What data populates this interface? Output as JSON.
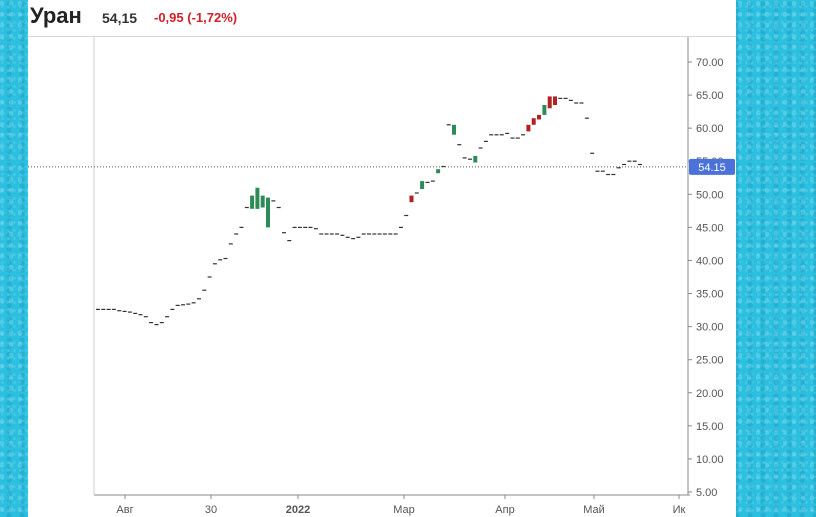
{
  "header": {
    "ticker": "Уран",
    "price": "54,15",
    "change": "-0,95 (-1,72%)"
  },
  "colors": {
    "up": "#2e8b57",
    "down": "#b22222",
    "flat": "#333333",
    "last_price_badge": "#4a72d8"
  },
  "chart_data": {
    "type": "candlestick",
    "x_ticks": [
      "Авг",
      "30",
      "2022",
      "Мар",
      "Апр",
      "Май",
      "Ик"
    ],
    "y_ticks": [
      "70.00",
      "65.00",
      "60.00",
      "55.00",
      "50.00",
      "45.00",
      "40.00",
      "35.00",
      "30.00",
      "25.00",
      "20.00",
      "15.00",
      "10.00",
      "5.00"
    ],
    "ylim": [
      5,
      70
    ],
    "last_price": 54.15,
    "last_price_label": "54.15",
    "candles": [
      {
        "o": 32.6,
        "c": 32.6
      },
      {
        "o": 32.6,
        "c": 32.6
      },
      {
        "o": 32.6,
        "c": 32.6
      },
      {
        "o": 32.6,
        "c": 32.6
      },
      {
        "o": 32.4,
        "c": 32.4
      },
      {
        "o": 32.3,
        "c": 32.3
      },
      {
        "o": 32.2,
        "c": 32.2
      },
      {
        "o": 32.0,
        "c": 32.0
      },
      {
        "o": 31.8,
        "c": 31.8
      },
      {
        "o": 31.5,
        "c": 31.5
      },
      {
        "o": 30.6,
        "c": 30.6
      },
      {
        "o": 30.3,
        "c": 30.3
      },
      {
        "o": 30.6,
        "c": 30.6
      },
      {
        "o": 31.5,
        "c": 31.5
      },
      {
        "o": 32.6,
        "c": 32.6
      },
      {
        "o": 33.2,
        "c": 33.2
      },
      {
        "o": 33.3,
        "c": 33.3
      },
      {
        "o": 33.4,
        "c": 33.4
      },
      {
        "o": 33.6,
        "c": 33.6
      },
      {
        "o": 34.2,
        "c": 34.2
      },
      {
        "o": 35.5,
        "c": 35.5
      },
      {
        "o": 37.5,
        "c": 37.5
      },
      {
        "o": 39.5,
        "c": 39.5
      },
      {
        "o": 40.1,
        "c": 40.1
      },
      {
        "o": 40.3,
        "c": 40.3
      },
      {
        "o": 42.5,
        "c": 42.5
      },
      {
        "o": 44.0,
        "c": 44.0
      },
      {
        "o": 45.0,
        "c": 45.0
      },
      {
        "o": 48.0,
        "c": 48.0
      },
      {
        "o": 47.8,
        "c": 49.8
      },
      {
        "o": 47.8,
        "c": 51.0
      },
      {
        "o": 48.0,
        "c": 49.8
      },
      {
        "o": 45.0,
        "c": 49.5
      },
      {
        "o": 49.0,
        "c": 49.0
      },
      {
        "o": 48.0,
        "c": 48.0
      },
      {
        "o": 44.2,
        "c": 44.2
      },
      {
        "o": 43.0,
        "c": 43.0
      },
      {
        "o": 45.0,
        "c": 45.0
      },
      {
        "o": 45.0,
        "c": 45.0
      },
      {
        "o": 45.0,
        "c": 45.0
      },
      {
        "o": 45.0,
        "c": 45.0
      },
      {
        "o": 44.8,
        "c": 44.8
      },
      {
        "o": 44.0,
        "c": 44.0
      },
      {
        "o": 44.0,
        "c": 44.0
      },
      {
        "o": 44.0,
        "c": 44.0
      },
      {
        "o": 44.0,
        "c": 44.0
      },
      {
        "o": 43.8,
        "c": 43.8
      },
      {
        "o": 43.5,
        "c": 43.5
      },
      {
        "o": 43.3,
        "c": 43.3
      },
      {
        "o": 43.5,
        "c": 43.5
      },
      {
        "o": 44.0,
        "c": 44.0
      },
      {
        "o": 44.0,
        "c": 44.0
      },
      {
        "o": 44.0,
        "c": 44.0
      },
      {
        "o": 44.0,
        "c": 44.0
      },
      {
        "o": 44.0,
        "c": 44.0
      },
      {
        "o": 44.0,
        "c": 44.0
      },
      {
        "o": 44.0,
        "c": 44.0
      },
      {
        "o": 45.0,
        "c": 45.0
      },
      {
        "o": 46.8,
        "c": 46.8
      },
      {
        "o": 49.8,
        "c": 48.8
      },
      {
        "o": 50.2,
        "c": 50.2
      },
      {
        "o": 50.8,
        "c": 52.0
      },
      {
        "o": 51.8,
        "c": 51.8
      },
      {
        "o": 52.0,
        "c": 52.0
      },
      {
        "o": 53.2,
        "c": 53.8
      },
      {
        "o": 54.2,
        "c": 54.2
      },
      {
        "o": 60.5,
        "c": 60.5
      },
      {
        "o": 59.0,
        "c": 60.5
      },
      {
        "o": 57.5,
        "c": 57.5
      },
      {
        "o": 55.5,
        "c": 55.5
      },
      {
        "o": 55.3,
        "c": 55.3
      },
      {
        "o": 54.8,
        "c": 55.8
      },
      {
        "o": 57.0,
        "c": 57.0
      },
      {
        "o": 58.0,
        "c": 58.0
      },
      {
        "o": 59.0,
        "c": 59.0
      },
      {
        "o": 59.0,
        "c": 59.0
      },
      {
        "o": 59.0,
        "c": 59.0
      },
      {
        "o": 59.2,
        "c": 59.2
      },
      {
        "o": 58.5,
        "c": 58.5
      },
      {
        "o": 58.5,
        "c": 58.5
      },
      {
        "o": 59.0,
        "c": 59.0
      },
      {
        "o": 60.5,
        "c": 59.5
      },
      {
        "o": 61.5,
        "c": 60.5
      },
      {
        "o": 62.0,
        "c": 61.3
      },
      {
        "o": 62.0,
        "c": 63.5
      },
      {
        "o": 64.8,
        "c": 63.0
      },
      {
        "o": 64.8,
        "c": 63.5
      },
      {
        "o": 64.5,
        "c": 64.5
      },
      {
        "o": 64.5,
        "c": 64.5
      },
      {
        "o": 64.2,
        "c": 64.2
      },
      {
        "o": 63.8,
        "c": 63.8
      },
      {
        "o": 63.8,
        "c": 63.8
      },
      {
        "o": 61.5,
        "c": 61.5
      },
      {
        "o": 56.2,
        "c": 56.2
      },
      {
        "o": 53.5,
        "c": 53.5
      },
      {
        "o": 53.5,
        "c": 53.5
      },
      {
        "o": 53.0,
        "c": 53.0
      },
      {
        "o": 53.0,
        "c": 53.0
      },
      {
        "o": 54.0,
        "c": 54.0
      },
      {
        "o": 54.5,
        "c": 54.5
      },
      {
        "o": 55.0,
        "c": 55.0
      },
      {
        "o": 55.0,
        "c": 55.0
      },
      {
        "o": 54.5,
        "c": 54.5
      }
    ]
  }
}
